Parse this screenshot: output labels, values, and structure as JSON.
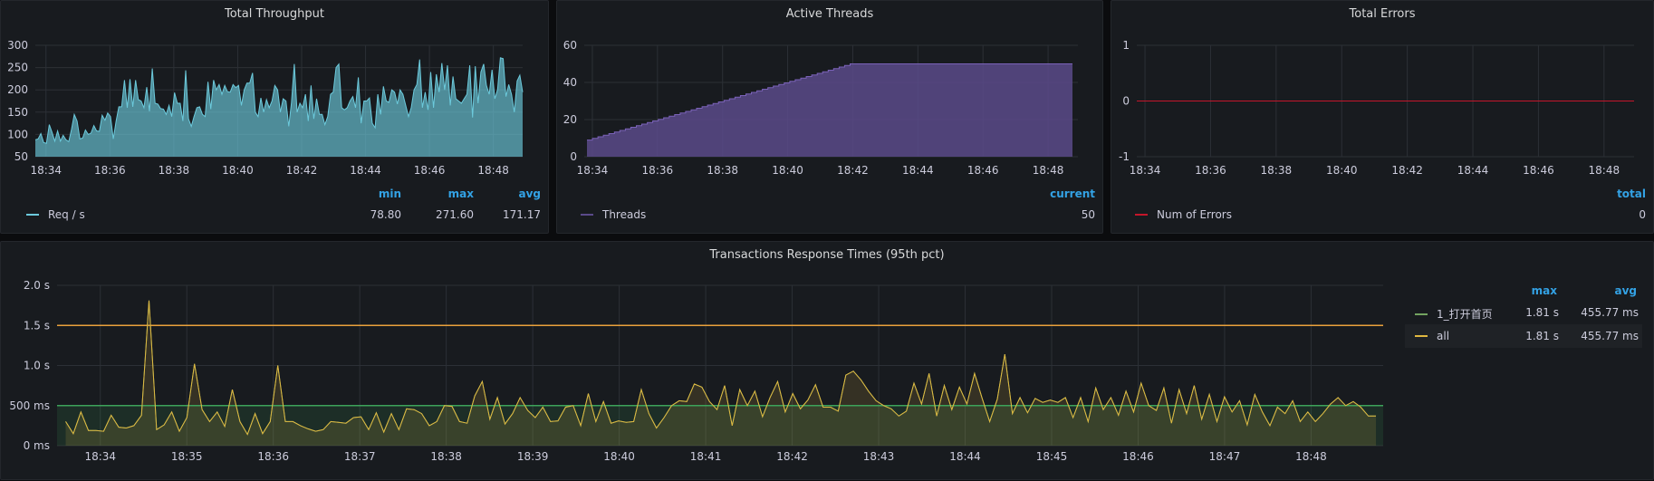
{
  "colors": {
    "throughput": "#6ccadc",
    "threads": "#5a4a8a",
    "threads_line": "#7a62b8",
    "errors": "#c4162a",
    "rt_line": "#e0b840",
    "rt_first": "#73a360",
    "threshold_high": "#e9a13b",
    "threshold_low": "#3da35a",
    "accent": "#33a2e5"
  },
  "panels": {
    "throughput": {
      "title": "Total Throughput",
      "legend_headers": [
        "min",
        "max",
        "avg"
      ],
      "legend": [
        {
          "name": "Req / s",
          "values": [
            "78.80",
            "271.60",
            "171.17"
          ]
        }
      ]
    },
    "threads": {
      "title": "Active Threads",
      "legend_headers": [
        "current"
      ],
      "legend": [
        {
          "name": "Threads",
          "values": [
            "50"
          ]
        }
      ]
    },
    "errors": {
      "title": "Total Errors",
      "legend_headers": [
        "total"
      ],
      "legend": [
        {
          "name": "Num of Errors",
          "values": [
            "0"
          ]
        }
      ]
    },
    "response": {
      "title": "Transactions Response Times (95th pct)",
      "legend_headers": [
        "max",
        "avg"
      ],
      "legend": [
        {
          "name": "1_打开首页",
          "values": [
            "1.81 s",
            "455.77 ms"
          ]
        },
        {
          "name": "all",
          "values": [
            "1.81 s",
            "455.77 ms"
          ]
        }
      ]
    }
  },
  "chart_data": [
    {
      "type": "area",
      "title": "Total Throughput",
      "series": [
        {
          "name": "Req / s",
          "x_range": [
            "18:33:40",
            "18:48:55"
          ],
          "values": [
            88,
            90,
            102,
            82,
            80,
            122,
            105,
            85,
            108,
            85,
            98,
            88,
            84,
            112,
            145,
            130,
            90,
            92,
            110,
            100,
            103,
            120,
            108,
            107,
            143,
            132,
            148,
            140,
            90,
            130,
            162,
            162,
            222,
            160,
            224,
            162,
            222,
            178,
            175,
            160,
            206,
            152,
            248,
            170,
            168,
            158,
            157,
            145,
            165,
            140,
            194,
            170,
            170,
            130,
            244,
            135,
            118,
            140,
            160,
            162,
            145,
            140,
            218,
            157,
            222,
            200,
            212,
            190,
            210,
            196,
            195,
            212,
            205,
            210,
            165,
            200,
            215,
            215,
            238,
            150,
            140,
            182,
            150,
            178,
            160,
            175,
            210,
            200,
            150,
            180,
            175,
            118,
            172,
            258,
            150,
            170,
            160,
            190,
            130,
            210,
            135,
            180,
            145,
            145,
            122,
            140,
            190,
            195,
            250,
            258,
            160,
            155,
            160,
            175,
            185,
            160,
            228,
            125,
            175,
            175,
            182,
            125,
            115,
            190,
            145,
            208,
            175,
            172,
            200,
            195,
            168,
            200,
            190,
            165,
            140,
            160,
            200,
            212,
            268,
            160,
            195,
            155,
            240,
            160,
            235,
            195,
            260,
            200,
            255,
            165,
            230,
            180,
            175,
            170,
            180,
            190,
            255,
            138,
            253,
            170,
            240,
            258,
            210,
            190,
            245,
            180,
            200,
            272,
            270,
            185,
            212,
            190,
            150,
            220,
            233,
            195
          ]
        }
      ],
      "ylim": [
        50,
        300
      ],
      "yticks": [
        "50",
        "100",
        "150",
        "200",
        "250",
        "300"
      ],
      "xticks": [
        "18:34",
        "18:36",
        "18:38",
        "18:40",
        "18:42",
        "18:44",
        "18:46",
        "18:48"
      ],
      "xlim": [
        "18:33:40",
        "18:48:55"
      ],
      "grid": true,
      "legend": "bottom"
    },
    {
      "type": "area",
      "title": "Active Threads",
      "series": [
        {
          "name": "Threads",
          "points": [
            [
              "18:33:50",
              9
            ],
            [
              "18:41:55",
              50
            ],
            [
              "18:48:45",
              50
            ]
          ]
        }
      ],
      "ylim": [
        0,
        60
      ],
      "yticks": [
        "0",
        "20",
        "40",
        "60"
      ],
      "xticks": [
        "18:34",
        "18:36",
        "18:38",
        "18:40",
        "18:42",
        "18:44",
        "18:46",
        "18:48"
      ],
      "xlim": [
        "18:33:45",
        "18:48:55"
      ],
      "grid": true,
      "legend": "bottom"
    },
    {
      "type": "line",
      "title": "Total Errors",
      "series": [
        {
          "name": "Num of Errors",
          "points": [
            [
              "18:33:45",
              0
            ],
            [
              "18:48:55",
              0
            ]
          ]
        }
      ],
      "ylim": [
        -1,
        1
      ],
      "yticks": [
        "-1",
        "0",
        "1"
      ],
      "xticks": [
        "18:34",
        "18:36",
        "18:38",
        "18:40",
        "18:42",
        "18:44",
        "18:46",
        "18:48"
      ],
      "xlim": [
        "18:33:45",
        "18:48:55"
      ],
      "grid": true,
      "legend": "bottom"
    },
    {
      "type": "line",
      "title": "Transactions Response Times (95th pct)",
      "series": [
        {
          "name": "1_打开首页",
          "x_range": [
            "18:33:36",
            "18:48:45"
          ],
          "values": [
            300,
            150,
            420,
            190,
            190,
            180,
            380,
            230,
            220,
            250,
            380,
            1810,
            200,
            260,
            420,
            180,
            350,
            1020,
            450,
            300,
            420,
            240,
            700,
            300,
            140,
            400,
            150,
            300,
            1000,
            300,
            300,
            250,
            210,
            180,
            200,
            300,
            290,
            280,
            350,
            360,
            200,
            410,
            170,
            400,
            200,
            460,
            450,
            400,
            250,
            300,
            500,
            490,
            300,
            280,
            620,
            800,
            330,
            600,
            270,
            400,
            600,
            440,
            350,
            480,
            300,
            310,
            480,
            500,
            250,
            650,
            300,
            550,
            280,
            310,
            290,
            300,
            700,
            400,
            220,
            350,
            500,
            560,
            550,
            770,
            730,
            550,
            450,
            750,
            250,
            700,
            500,
            680,
            360,
            600,
            800,
            420,
            650,
            460,
            570,
            760,
            480,
            480,
            430,
            880,
            930,
            820,
            680,
            560,
            500,
            460,
            370,
            430,
            780,
            520,
            900,
            370,
            750,
            450,
            730,
            520,
            900,
            590,
            300,
            580,
            1140,
            400,
            600,
            410,
            590,
            540,
            570,
            540,
            600,
            350,
            600,
            300,
            720,
            450,
            600,
            380,
            680,
            420,
            780,
            500,
            440,
            720,
            280,
            700,
            400,
            750,
            330,
            640,
            300,
            610,
            420,
            560,
            260,
            640,
            420,
            250,
            480,
            400,
            560,
            300,
            420,
            300,
            400,
            520,
            600,
            500,
            550,
            480,
            370,
            370
          ]
        },
        {
          "name": "all",
          "same_as": "1_打开首页"
        }
      ],
      "ylim": [
        0,
        2000
      ],
      "yticks": [
        "0 ms",
        "500 ms",
        "1.0 s",
        "1.5 s",
        "2.0 s"
      ],
      "xticks": [
        "18:34",
        "18:35",
        "18:36",
        "18:37",
        "18:38",
        "18:39",
        "18:40",
        "18:41",
        "18:42",
        "18:43",
        "18:44",
        "18:45",
        "18:46",
        "18:47",
        "18:48"
      ],
      "xlim": [
        "18:33:30",
        "18:48:50"
      ],
      "thresholds": [
        500,
        1500
      ],
      "grid": true,
      "legend": "right"
    }
  ]
}
